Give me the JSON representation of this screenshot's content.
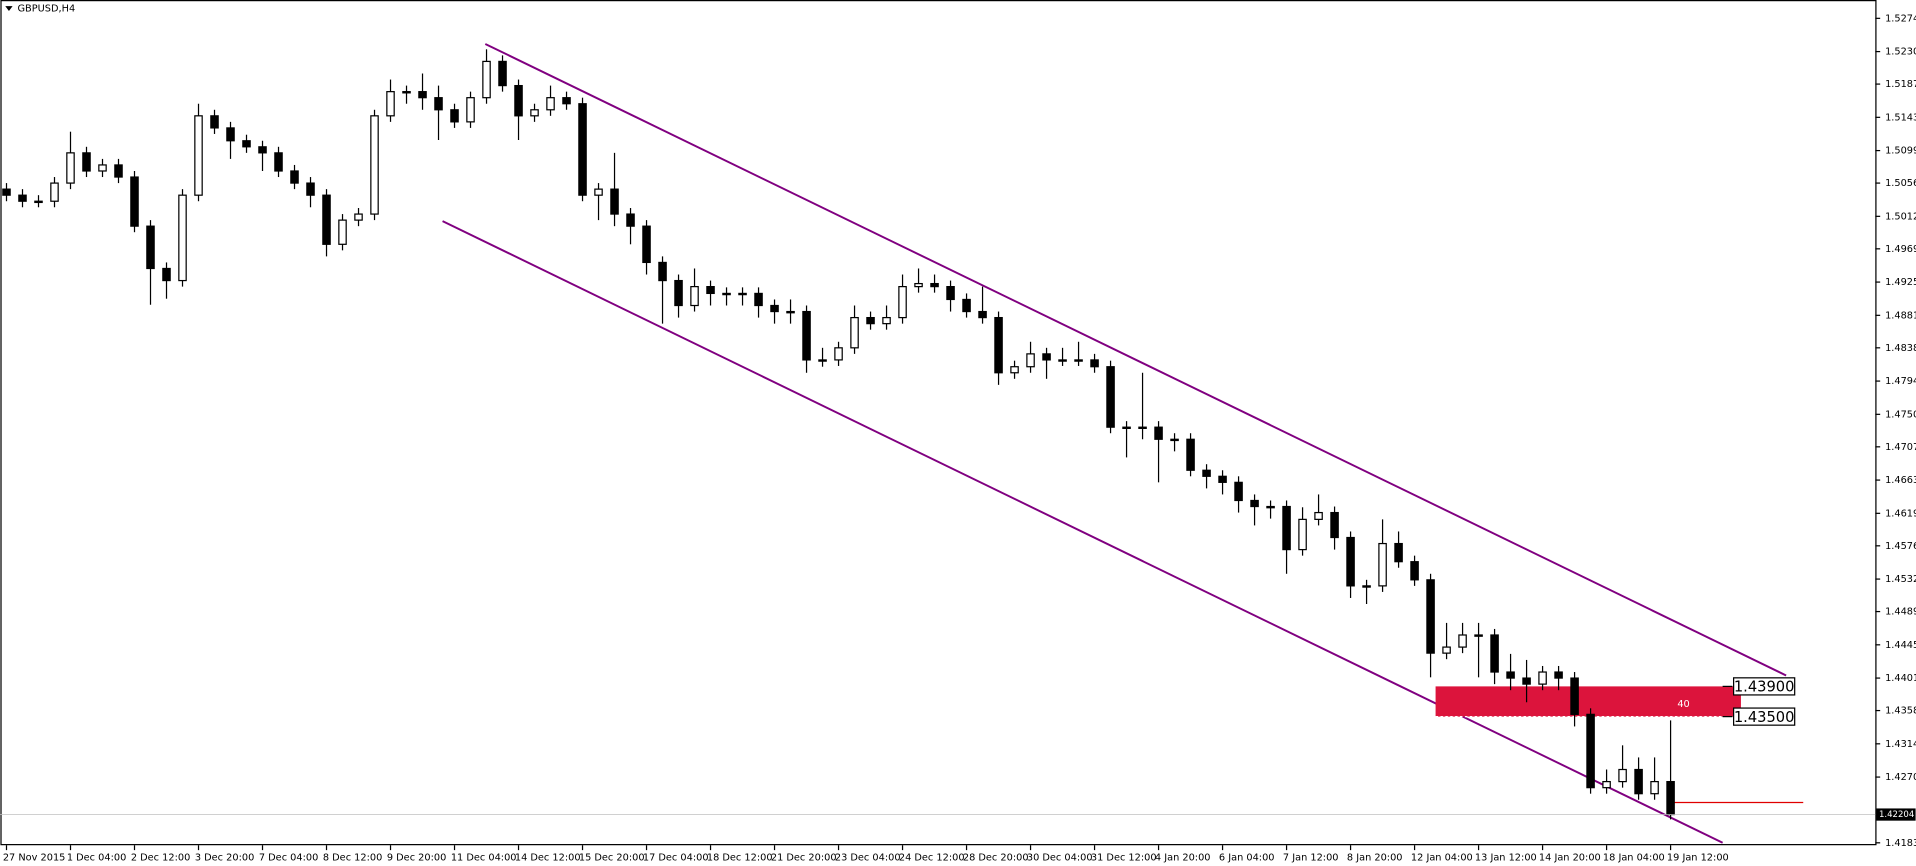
{
  "chart_data": {
    "type": "candlestick",
    "title": "GBPUSD,H4",
    "categories": [
      "27 Nov 2015",
      null,
      null,
      null,
      "1 Dec 04:00",
      null,
      null,
      null,
      "2 Dec 12:00",
      null,
      null,
      null,
      "3 Dec 20:00",
      null,
      null,
      null,
      "7 Dec 04:00",
      null,
      null,
      null,
      "8 Dec 12:00",
      null,
      null,
      null,
      "9 Dec 20:00",
      null,
      null,
      null,
      "11 Dec 04:00",
      null,
      null,
      null,
      "14 Dec 12:00",
      null,
      null,
      null,
      "15 Dec 20:00",
      null,
      null,
      null,
      "17 Dec 04:00",
      null,
      null,
      null,
      "18 Dec 12:00",
      null,
      null,
      null,
      "21 Dec 20:00",
      null,
      null,
      null,
      "23 Dec 04:00",
      null,
      null,
      null,
      "24 Dec 12:00",
      null,
      null,
      null,
      "28 Dec 20:00",
      null,
      null,
      null,
      "30 Dec 04:00",
      null,
      null,
      null,
      "31 Dec 12:00",
      null,
      null,
      null,
      "4 Jan 20:00",
      null,
      null,
      null,
      "6 Jan 04:00",
      null,
      null,
      null,
      "7 Jan 12:00",
      null,
      null,
      null,
      "8 Jan 20:00",
      null,
      null,
      null,
      "12 Jan 04:00",
      null,
      null,
      null,
      "13 Jan 12:00",
      null,
      null,
      null,
      "14 Jan 20:00",
      null,
      null,
      null,
      "18 Jan 04:00",
      null,
      null,
      null,
      "19 Jan 12:00"
    ],
    "open": [
      1.5048,
      1.504,
      1.5032,
      1.5032,
      1.5056,
      1.5096,
      1.5072,
      1.508,
      1.5064,
      1.4999,
      1.4943,
      1.4927,
      1.504,
      1.5145,
      1.5129,
      1.5112,
      1.5104,
      1.5096,
      1.5072,
      1.5056,
      1.504,
      1.4975,
      1.5007,
      1.5015,
      1.5145,
      1.5177,
      1.5177,
      1.5169,
      1.5153,
      1.5137,
      1.5169,
      1.5217,
      1.5185,
      1.5145,
      1.5153,
      1.5169,
      1.5161,
      1.504,
      1.5048,
      1.5015,
      1.4999,
      1.4951,
      1.4927,
      1.4894,
      1.4919,
      1.491,
      1.491,
      1.491,
      1.4894,
      1.4886,
      1.4886,
      1.4822,
      1.4822,
      1.4838,
      1.4878,
      1.487,
      1.4878,
      1.4919,
      1.4923,
      1.4919,
      1.4902,
      1.4886,
      1.4878,
      1.4805,
      1.4813,
      1.483,
      1.4822,
      1.4822,
      1.4822,
      1.4813,
      1.4733,
      1.4733,
      1.4733,
      1.4717,
      1.4717,
      1.4676,
      1.4668,
      1.466,
      1.4636,
      1.4628,
      1.4628,
      1.4571,
      1.4611,
      1.462,
      1.4587,
      1.4523,
      1.4523,
      1.4579,
      1.4555,
      1.4531,
      1.4434,
      1.4442,
      1.4458,
      1.4458,
      1.4409,
      1.4401,
      1.4393,
      1.4409,
      1.4401,
      1.4353,
      1.4256,
      1.4264,
      1.428,
      1.4248,
      1.4264
    ],
    "high": [
      1.5056,
      1.5048,
      1.504,
      1.5064,
      1.5124,
      1.5104,
      1.5088,
      1.5088,
      1.5072,
      1.5007,
      1.4951,
      1.5048,
      1.5161,
      1.5153,
      1.5137,
      1.512,
      1.5112,
      1.5104,
      1.508,
      1.5064,
      1.5048,
      1.5015,
      1.5023,
      1.5153,
      1.5193,
      1.5185,
      1.5201,
      1.5185,
      1.5161,
      1.5177,
      1.5233,
      1.5225,
      1.5193,
      1.5161,
      1.5185,
      1.5177,
      1.5169,
      1.5056,
      1.5096,
      1.5023,
      1.5007,
      1.4959,
      1.4935,
      1.4943,
      1.4927,
      1.4918,
      1.4918,
      1.4918,
      1.4902,
      1.4902,
      1.4894,
      1.4838,
      1.4846,
      1.4894,
      1.4886,
      1.4894,
      1.4935,
      1.4943,
      1.4935,
      1.4927,
      1.491,
      1.4919,
      1.4886,
      1.4821,
      1.4846,
      1.4838,
      1.4838,
      1.4846,
      1.483,
      1.4821,
      1.4741,
      1.4805,
      1.4741,
      1.4725,
      1.4725,
      1.4684,
      1.4676,
      1.4668,
      1.4644,
      1.4636,
      1.4636,
      1.4627,
      1.4644,
      1.4628,
      1.4595,
      1.4531,
      1.4611,
      1.4595,
      1.4563,
      1.4539,
      1.4474,
      1.4474,
      1.4474,
      1.4466,
      1.4433,
      1.4425,
      1.4417,
      1.4417,
      1.4409,
      1.4361,
      1.428,
      1.4312,
      1.4296,
      1.4296,
      1.4345
    ],
    "low": [
      1.5032,
      1.5024,
      1.5024,
      1.5024,
      1.5048,
      1.5064,
      1.5064,
      1.5056,
      1.4991,
      1.4895,
      1.4903,
      1.4919,
      1.5032,
      1.5121,
      1.5088,
      1.5096,
      1.5072,
      1.5064,
      1.5048,
      1.5024,
      1.4959,
      1.4967,
      1.4999,
      1.5007,
      1.5137,
      1.5161,
      1.5153,
      1.5113,
      1.5129,
      1.5129,
      1.5161,
      1.5177,
      1.5113,
      1.5137,
      1.5145,
      1.5153,
      1.5032,
      1.5007,
      1.4999,
      1.4975,
      1.4935,
      1.487,
      1.4878,
      1.4886,
      1.4894,
      1.4894,
      1.4894,
      1.4878,
      1.487,
      1.487,
      1.4805,
      1.4813,
      1.4814,
      1.483,
      1.4862,
      1.4862,
      1.487,
      1.4911,
      1.4911,
      1.4886,
      1.4878,
      1.487,
      1.4789,
      1.4797,
      1.4805,
      1.4797,
      1.4814,
      1.4814,
      1.4805,
      1.4725,
      1.4693,
      1.4717,
      1.466,
      1.4701,
      1.4668,
      1.4652,
      1.4644,
      1.462,
      1.4603,
      1.4612,
      1.4539,
      1.4563,
      1.4603,
      1.4571,
      1.4507,
      1.4499,
      1.4515,
      1.4547,
      1.4523,
      1.4402,
      1.4426,
      1.4434,
      1.4402,
      1.4393,
      1.4385,
      1.4369,
      1.4385,
      1.4385,
      1.4337,
      1.4248,
      1.4248,
      1.4256,
      1.424,
      1.424,
      1.4214
    ],
    "close": [
      1.504,
      1.5032,
      1.5032,
      1.5056,
      1.5096,
      1.5072,
      1.508,
      1.5064,
      1.4999,
      1.4943,
      1.4927,
      1.504,
      1.5145,
      1.5129,
      1.5112,
      1.5104,
      1.5096,
      1.5072,
      1.5056,
      1.504,
      1.4975,
      1.5007,
      1.5015,
      1.5145,
      1.5177,
      1.5177,
      1.5169,
      1.5153,
      1.5137,
      1.5169,
      1.5217,
      1.5185,
      1.5145,
      1.5153,
      1.5169,
      1.5161,
      1.504,
      1.5048,
      1.5015,
      1.4999,
      1.4951,
      1.4927,
      1.4894,
      1.4919,
      1.491,
      1.491,
      1.491,
      1.4894,
      1.4886,
      1.4886,
      1.4822,
      1.4822,
      1.4838,
      1.4878,
      1.487,
      1.4878,
      1.4919,
      1.4923,
      1.4919,
      1.4902,
      1.4886,
      1.4878,
      1.4805,
      1.4813,
      1.483,
      1.4822,
      1.4822,
      1.4822,
      1.4813,
      1.4733,
      1.4733,
      1.4733,
      1.4717,
      1.4717,
      1.4676,
      1.4668,
      1.466,
      1.4636,
      1.4628,
      1.4628,
      1.4571,
      1.4611,
      1.462,
      1.4587,
      1.4523,
      1.4523,
      1.4579,
      1.4555,
      1.4531,
      1.4434,
      1.4442,
      1.4458,
      1.4458,
      1.4409,
      1.4401,
      1.4393,
      1.4409,
      1.4401,
      1.4353,
      1.4256,
      1.4264,
      1.428,
      1.4248,
      1.4264,
      1.42204
    ],
    "ylim": [
      1.41798,
      1.52918
    ],
    "yticks": [
      {
        "value": 1.5274,
        "label": "1.52740"
      },
      {
        "value": 1.523,
        "label": "1.52300"
      },
      {
        "value": 1.5187,
        "label": "1.51870"
      },
      {
        "value": 1.5143,
        "label": "1.51430"
      },
      {
        "value": 1.5099,
        "label": "1.50990"
      },
      {
        "value": 1.5056,
        "label": "1.50560"
      },
      {
        "value": 1.5012,
        "label": "1.50120"
      },
      {
        "value": 1.4969,
        "label": "1.49690"
      },
      {
        "value": 1.4925,
        "label": "1.49250"
      },
      {
        "value": 1.4881,
        "label": "1.48810"
      },
      {
        "value": 1.4838,
        "label": "1.48380"
      },
      {
        "value": 1.4794,
        "label": "1.47940"
      },
      {
        "value": 1.475,
        "label": "1.47500"
      },
      {
        "value": 1.4707,
        "label": "1.47070"
      },
      {
        "value": 1.4663,
        "label": "1.46630"
      },
      {
        "value": 1.4619,
        "label": "1.46190"
      },
      {
        "value": 1.4576,
        "label": "1.45760"
      },
      {
        "value": 1.4532,
        "label": "1.45320"
      },
      {
        "value": 1.4489,
        "label": "1.44890"
      },
      {
        "value": 1.4445,
        "label": "1.44450"
      },
      {
        "value": 1.4401,
        "label": "1.44010"
      },
      {
        "value": 1.4358,
        "label": "1.43580"
      },
      {
        "value": 1.4314,
        "label": "1.43140"
      },
      {
        "value": 1.427,
        "label": "1.42700"
      },
      {
        "value": 1.4183,
        "label": "1.41830"
      }
    ],
    "current_price": 1.42204,
    "zone": {
      "top": {
        "value": 1.439,
        "label": "1.43900"
      },
      "bottom": {
        "value": 1.435,
        "label": "1.43500"
      },
      "size": 40,
      "color": "#dc143c"
    },
    "grid": false
  }
}
